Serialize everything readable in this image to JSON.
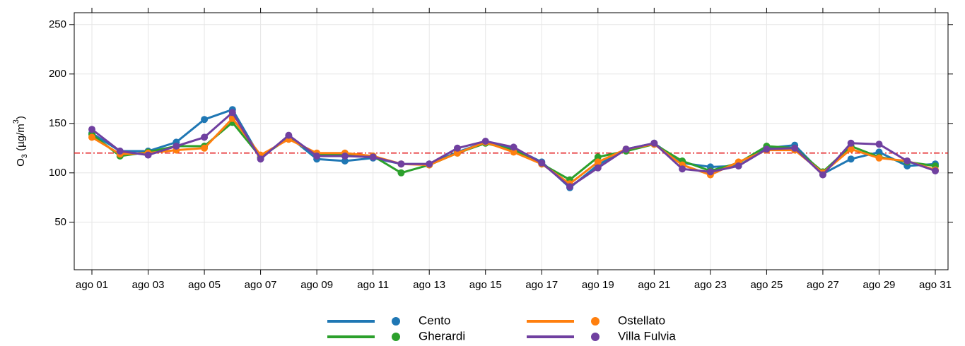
{
  "chart_data": {
    "type": "line",
    "ylabel_parts": [
      "O",
      "3",
      " (µg/m",
      "3",
      ")"
    ],
    "categories": [
      "ago 01",
      null,
      "ago 03",
      null,
      "ago 05",
      null,
      "ago 07",
      null,
      "ago 09",
      null,
      "ago 11",
      null,
      "ago 13",
      null,
      "ago 15",
      null,
      "ago 17",
      null,
      "ago 19",
      null,
      "ago 21",
      null,
      "ago 23",
      null,
      "ago 25",
      null,
      "ago 27",
      null,
      "ago 29",
      null,
      "ago 31"
    ],
    "series": [
      {
        "name": "Cento",
        "color": "#1f77b4",
        "values": [
          140,
          122,
          122,
          131,
          154,
          164,
          115,
          137,
          114,
          112,
          115,
          109,
          109,
          121,
          131,
          125,
          111,
          85,
          108,
          124,
          130,
          110,
          106,
          107,
          125,
          128,
          99,
          114,
          121,
          107,
          109
        ]
      },
      {
        "name": "Gherardi",
        "color": "#2ca02c",
        "values": [
          139,
          117,
          121,
          127,
          127,
          151,
          116,
          135,
          119,
          119,
          117,
          100,
          108,
          120,
          130,
          123,
          109,
          93,
          116,
          122,
          129,
          112,
          102,
          110,
          127,
          125,
          101,
          127,
          116,
          111,
          107
        ]
      },
      {
        "name": "Ostellato",
        "color": "#ff7f0e",
        "values": [
          136,
          119,
          120,
          123,
          125,
          155,
          118,
          134,
          120,
          120,
          117,
          109,
          108,
          120,
          131,
          121,
          109,
          89,
          111,
          124,
          129,
          108,
          98,
          111,
          123,
          123,
          100,
          124,
          115,
          112,
          103
        ]
      },
      {
        "name": "Villa Fulvia",
        "color": "#7040a0",
        "values": [
          144,
          122,
          118,
          127,
          136,
          161,
          114,
          138,
          117,
          117,
          116,
          109,
          109,
          125,
          132,
          126,
          110,
          86,
          105,
          124,
          130,
          104,
          101,
          107,
          124,
          125,
          98,
          130,
          129,
          112,
          102
        ]
      }
    ],
    "threshold": 120,
    "threshold_color": "#e41a1c",
    "ylim": [
      2,
      262
    ],
    "yticks": [
      50,
      100,
      150,
      200,
      250
    ],
    "grid": true
  }
}
